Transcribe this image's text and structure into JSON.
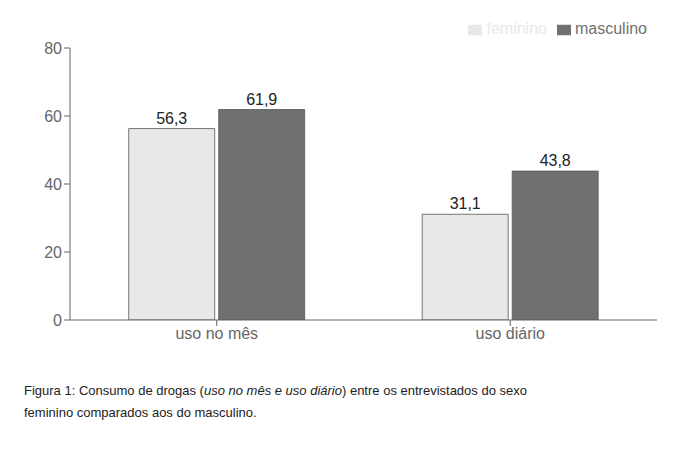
{
  "chart_data": {
    "type": "bar",
    "categories": [
      "uso no mês",
      "uso diário"
    ],
    "series": [
      {
        "name": "feminino",
        "color": "#e8e8e8",
        "values": [
          56.3,
          31.1
        ],
        "value_labels": [
          "56,3",
          "31,1"
        ]
      },
      {
        "name": "masculino",
        "color": "#707070",
        "values": [
          61.9,
          43.8
        ],
        "value_labels": [
          "61,9",
          "43,8"
        ]
      }
    ],
    "ylim": [
      0,
      80
    ],
    "yticks": [
      0,
      20,
      40,
      60,
      80
    ],
    "grid": false,
    "legend": "top-right",
    "data_labels": true,
    "annotations": [
      [
        "Figura 1: Consumo de drogas (",
        "uso no mês e uso diário",
        ") entre os entrevistados do sexo"
      ],
      [
        "feminino comparados aos do masculino."
      ]
    ]
  }
}
